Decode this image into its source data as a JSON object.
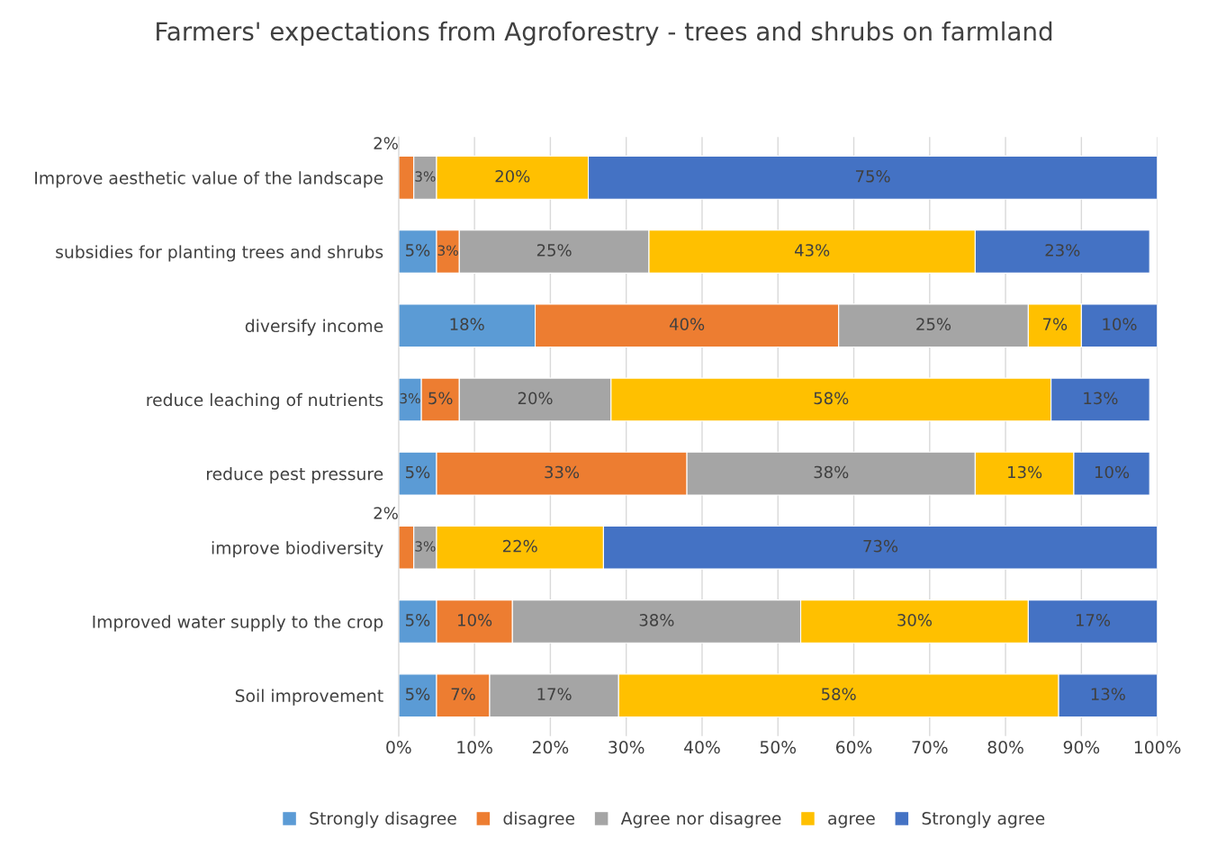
{
  "chart_data": {
    "type": "bar",
    "orientation": "horizontal",
    "stacked": true,
    "title": "Farmers' expectations from Agroforestry - trees and shrubs on farmland",
    "categories": [
      "Improve aesthetic value of the landscape",
      "subsidies for planting trees and shrubs",
      "diversify income",
      "reduce leaching of nutrients",
      "reduce pest pressure",
      "improve biodiversity",
      "Improved water supply to the crop",
      "Soil improvement"
    ],
    "series": [
      {
        "name": "Strongly disagree",
        "color": "#5b9bd5",
        "values": [
          0,
          5,
          18,
          3,
          5,
          0,
          5,
          5
        ],
        "value_labels": [
          null,
          "5%",
          "18%",
          "3%",
          "5%",
          null,
          "5%",
          "5%"
        ]
      },
      {
        "name": "disagree",
        "color": "#ed7d31",
        "values": [
          2,
          3,
          40,
          5,
          33,
          2,
          10,
          7
        ],
        "value_labels": [
          "2%",
          "3%",
          "40%",
          "5%",
          "33%",
          "2%",
          "10%",
          "7%"
        ]
      },
      {
        "name": "Agree nor disagree",
        "color": "#a5a5a5",
        "values": [
          3,
          25,
          25,
          20,
          38,
          3,
          38,
          17
        ],
        "value_labels": [
          "3%",
          "25%",
          "25%",
          "20%",
          "38%",
          "3%",
          "38%",
          "17%"
        ]
      },
      {
        "name": "agree",
        "color": "#ffc000",
        "values": [
          20,
          43,
          7,
          58,
          13,
          22,
          30,
          58
        ],
        "value_labels": [
          "20%",
          "43%",
          "7%",
          "58%",
          "13%",
          "22%",
          "30%",
          "58%"
        ]
      },
      {
        "name": "Strongly agree",
        "color": "#4472c4",
        "values": [
          75,
          23,
          10,
          13,
          10,
          73,
          17,
          13
        ],
        "value_labels": [
          "75%",
          "23%",
          "10%",
          "13%",
          "10%",
          "73%",
          "17%",
          "13%"
        ]
      }
    ],
    "xlim": [
      0,
      100
    ],
    "xticks": [
      {
        "value": 0,
        "label": "0%"
      },
      {
        "value": 10,
        "label": "10%"
      },
      {
        "value": 20,
        "label": "20%"
      },
      {
        "value": 30,
        "label": "30%"
      },
      {
        "value": 40,
        "label": "40%"
      },
      {
        "value": 50,
        "label": "50%"
      },
      {
        "value": 60,
        "label": "60%"
      },
      {
        "value": 70,
        "label": "70%"
      },
      {
        "value": 80,
        "label": "80%"
      },
      {
        "value": 90,
        "label": "90%"
      },
      {
        "value": 100,
        "label": "100%"
      }
    ],
    "grid": "x",
    "legend": "bottom"
  }
}
